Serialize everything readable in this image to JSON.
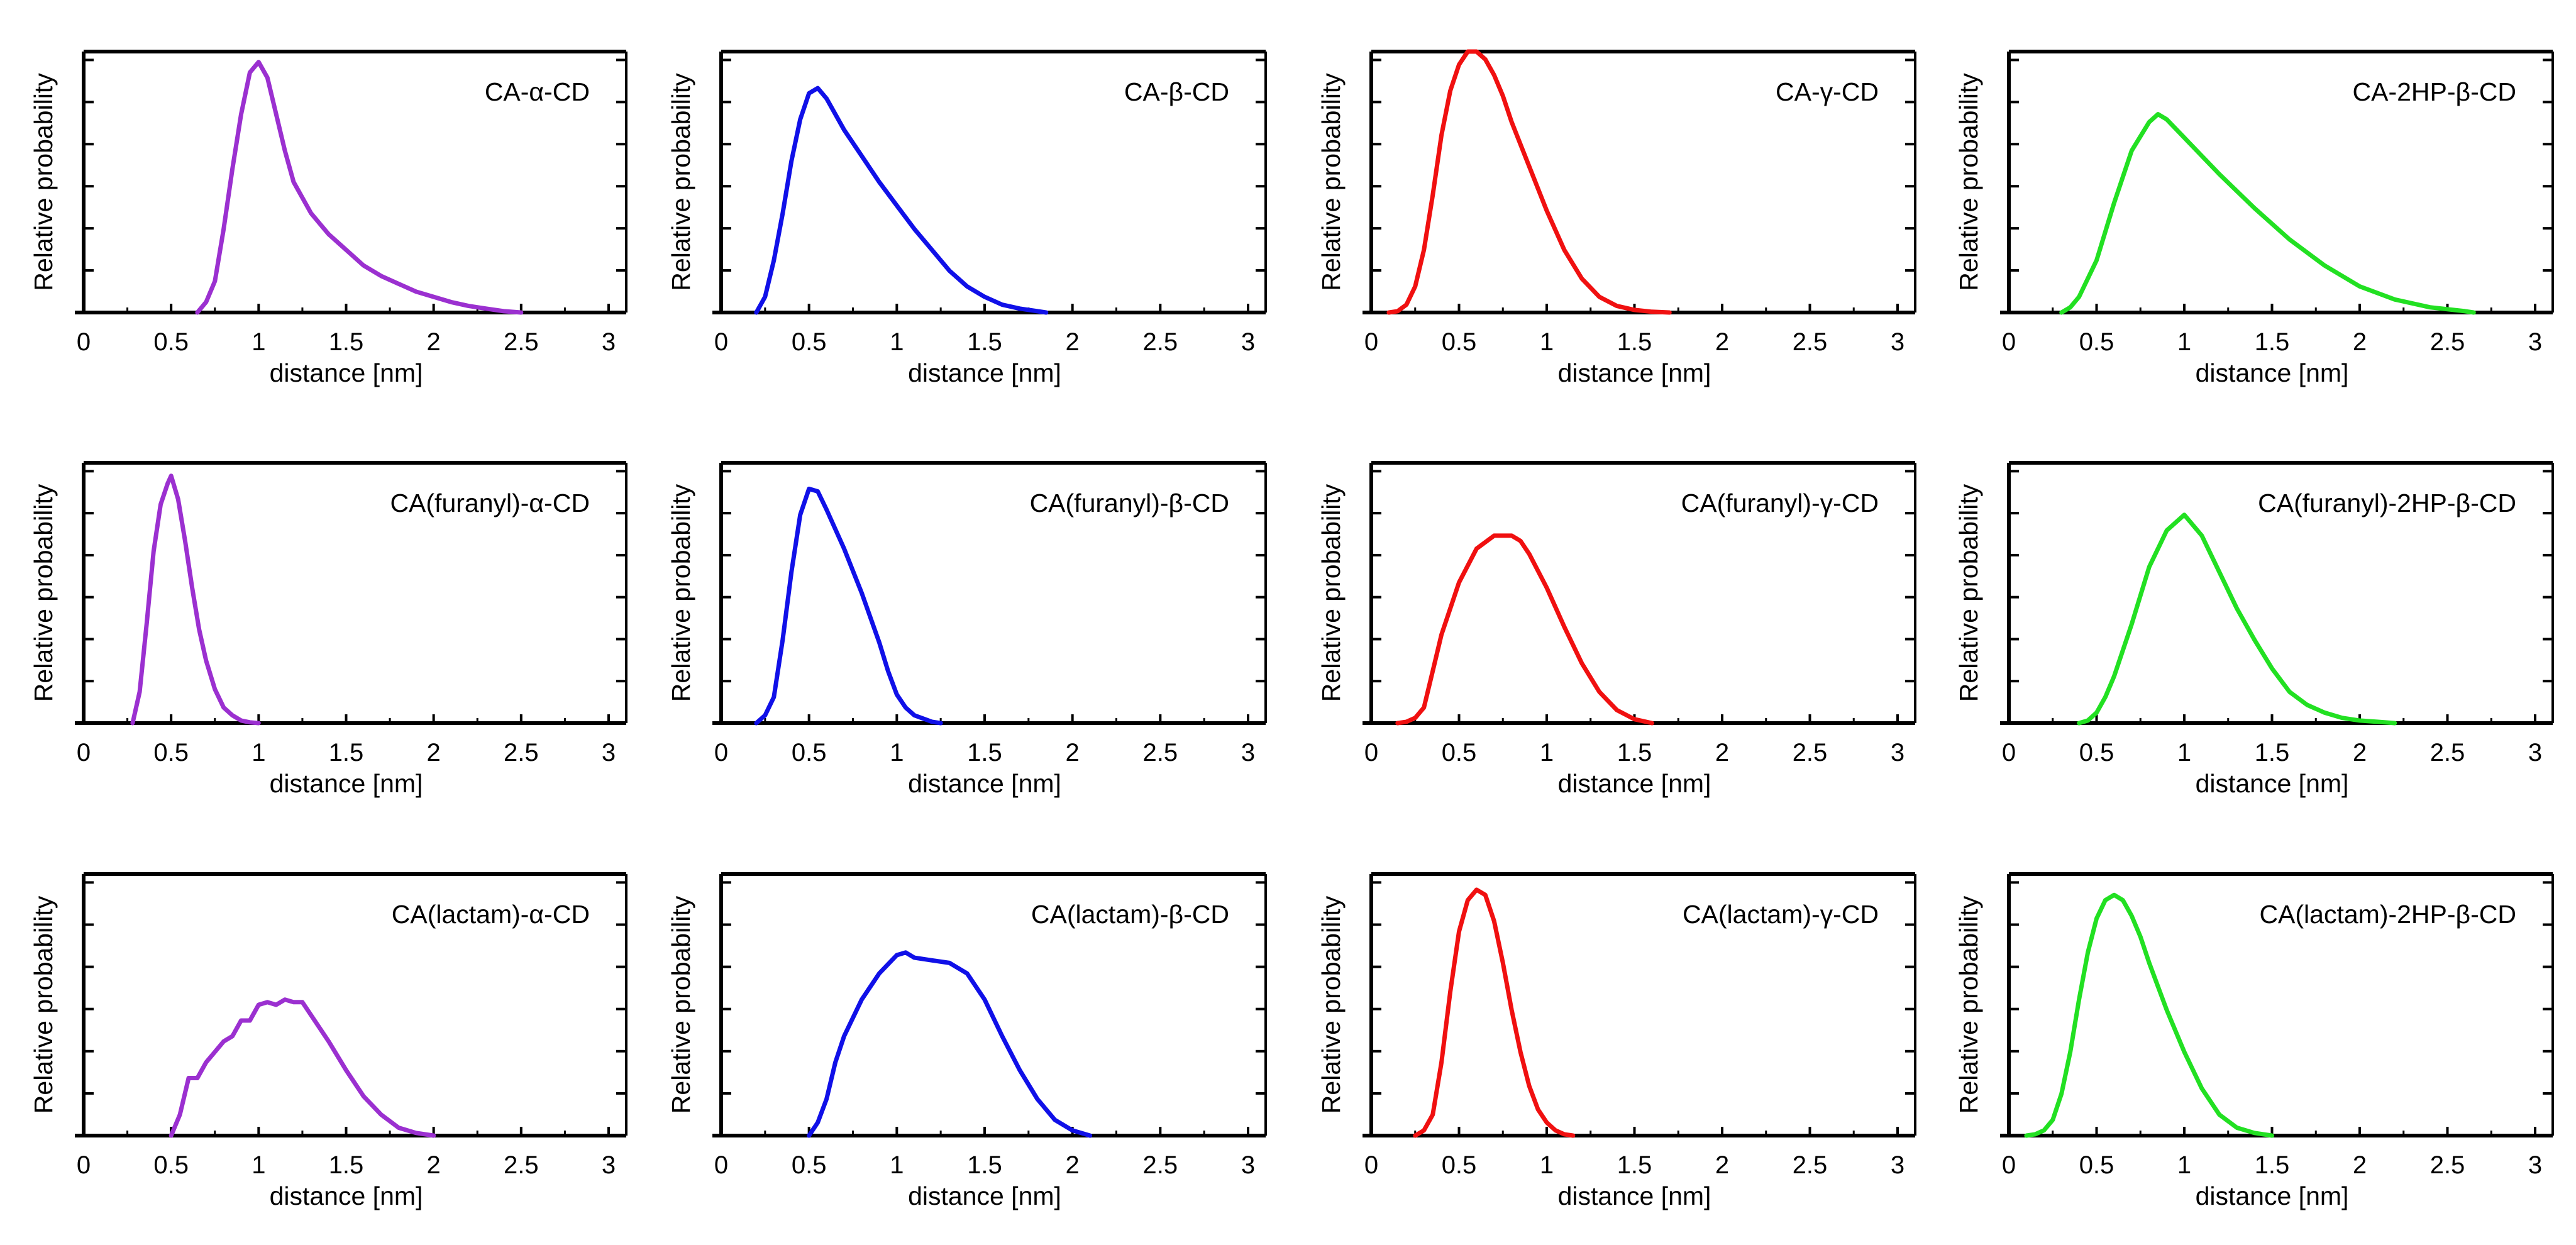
{
  "figure": {
    "ylabel": "Relative probability",
    "xlabel": "distance [nm]",
    "x_ticks": [
      0,
      0.5,
      1,
      1.5,
      2,
      2.5,
      3
    ],
    "x_tick_labels": [
      "0",
      "0.5",
      "1",
      "1.5",
      "2",
      "2.5",
      "3"
    ]
  },
  "chart_data": [
    {
      "type": "line",
      "title": "CA-α-CD",
      "xlabel": "distance [nm]",
      "ylabel": "Relative probability",
      "color": "#9B30D0",
      "xlim": [
        0,
        3
      ],
      "ylim": [
        0,
        1
      ],
      "series": [
        {
          "name": "CA-α-CD",
          "x": [
            0.65,
            0.7,
            0.75,
            0.8,
            0.85,
            0.9,
            0.95,
            1.0,
            1.05,
            1.1,
            1.15,
            1.2,
            1.3,
            1.4,
            1.5,
            1.6,
            1.7,
            1.8,
            1.9,
            2.0,
            2.1,
            2.2,
            2.3,
            2.4,
            2.5
          ],
          "y": [
            0,
            0.04,
            0.12,
            0.32,
            0.55,
            0.76,
            0.92,
            0.96,
            0.9,
            0.76,
            0.62,
            0.5,
            0.38,
            0.3,
            0.24,
            0.18,
            0.14,
            0.11,
            0.08,
            0.06,
            0.04,
            0.025,
            0.015,
            0.005,
            0
          ]
        }
      ]
    },
    {
      "type": "line",
      "title": "CA-β-CD",
      "xlabel": "distance [nm]",
      "ylabel": "Relative probability",
      "color": "#1010E8",
      "xlim": [
        0,
        3
      ],
      "ylim": [
        0,
        1
      ],
      "series": [
        {
          "name": "CA-β-CD",
          "x": [
            0.2,
            0.25,
            0.3,
            0.35,
            0.4,
            0.45,
            0.5,
            0.55,
            0.6,
            0.7,
            0.8,
            0.9,
            1.0,
            1.1,
            1.2,
            1.3,
            1.4,
            1.5,
            1.6,
            1.7,
            1.8,
            1.85
          ],
          "y": [
            0,
            0.06,
            0.2,
            0.38,
            0.58,
            0.74,
            0.84,
            0.86,
            0.82,
            0.7,
            0.6,
            0.5,
            0.41,
            0.32,
            0.24,
            0.16,
            0.1,
            0.06,
            0.03,
            0.015,
            0.005,
            0
          ]
        }
      ]
    },
    {
      "type": "line",
      "title": "CA-γ-CD",
      "xlabel": "distance [nm]",
      "ylabel": "Relative probability",
      "color": "#F01010",
      "xlim": [
        0,
        3
      ],
      "ylim": [
        0,
        1
      ],
      "series": [
        {
          "name": "CA-γ-CD",
          "x": [
            0.1,
            0.15,
            0.2,
            0.25,
            0.3,
            0.35,
            0.4,
            0.45,
            0.5,
            0.55,
            0.6,
            0.65,
            0.7,
            0.75,
            0.8,
            0.9,
            1.0,
            1.1,
            1.2,
            1.3,
            1.4,
            1.5,
            1.6,
            1.7
          ],
          "y": [
            0,
            0.005,
            0.03,
            0.1,
            0.24,
            0.45,
            0.68,
            0.85,
            0.95,
            1.0,
            1.0,
            0.97,
            0.91,
            0.83,
            0.73,
            0.56,
            0.39,
            0.24,
            0.13,
            0.06,
            0.025,
            0.01,
            0.003,
            0
          ]
        }
      ]
    },
    {
      "type": "line",
      "title": "CA-2HP-β-CD",
      "xlabel": "distance [nm]",
      "ylabel": "Relative probability",
      "color": "#22E022",
      "xlim": [
        0,
        3
      ],
      "ylim": [
        0,
        1
      ],
      "series": [
        {
          "name": "CA-2HP-β-CD",
          "x": [
            0.3,
            0.35,
            0.4,
            0.5,
            0.6,
            0.7,
            0.8,
            0.85,
            0.9,
            1.0,
            1.1,
            1.2,
            1.4,
            1.6,
            1.8,
            2.0,
            2.2,
            2.4,
            2.6,
            2.65
          ],
          "y": [
            0,
            0.02,
            0.06,
            0.2,
            0.42,
            0.62,
            0.73,
            0.76,
            0.74,
            0.67,
            0.6,
            0.53,
            0.4,
            0.28,
            0.18,
            0.1,
            0.05,
            0.02,
            0.005,
            0
          ]
        }
      ]
    },
    {
      "type": "line",
      "title": "CA(furanyl)-α-CD",
      "xlabel": "distance [nm]",
      "ylabel": "Relative probability",
      "color": "#9B30D0",
      "xlim": [
        0,
        3
      ],
      "ylim": [
        0,
        1
      ],
      "series": [
        {
          "name": "CA(furanyl)-α-CD",
          "x": [
            0.28,
            0.32,
            0.36,
            0.4,
            0.44,
            0.48,
            0.5,
            0.54,
            0.58,
            0.62,
            0.66,
            0.7,
            0.75,
            0.8,
            0.85,
            0.9,
            0.95,
            1.0
          ],
          "y": [
            0,
            0.12,
            0.38,
            0.66,
            0.84,
            0.92,
            0.95,
            0.86,
            0.7,
            0.52,
            0.36,
            0.24,
            0.13,
            0.06,
            0.03,
            0.01,
            0.003,
            0
          ]
        }
      ]
    },
    {
      "type": "line",
      "title": "CA(furanyl)-β-CD",
      "xlabel": "distance [nm]",
      "ylabel": "Relative probability",
      "color": "#1010E8",
      "xlim": [
        0,
        3
      ],
      "ylim": [
        0,
        1
      ],
      "series": [
        {
          "name": "CA(furanyl)-β-CD",
          "x": [
            0.2,
            0.25,
            0.3,
            0.35,
            0.4,
            0.45,
            0.5,
            0.55,
            0.6,
            0.7,
            0.8,
            0.9,
            0.95,
            1.0,
            1.05,
            1.1,
            1.2,
            1.25
          ],
          "y": [
            0,
            0.03,
            0.1,
            0.32,
            0.58,
            0.8,
            0.9,
            0.89,
            0.82,
            0.67,
            0.5,
            0.31,
            0.2,
            0.11,
            0.06,
            0.03,
            0.005,
            0
          ]
        }
      ]
    },
    {
      "type": "line",
      "title": "CA(furanyl)-γ-CD",
      "xlabel": "distance [nm]",
      "ylabel": "Relative probability",
      "color": "#F01010",
      "xlim": [
        0,
        3
      ],
      "ylim": [
        0,
        1
      ],
      "series": [
        {
          "name": "CA(furanyl)-γ-CD",
          "x": [
            0.15,
            0.2,
            0.25,
            0.3,
            0.35,
            0.4,
            0.5,
            0.6,
            0.7,
            0.8,
            0.85,
            0.9,
            1.0,
            1.1,
            1.2,
            1.3,
            1.4,
            1.5,
            1.6
          ],
          "y": [
            0,
            0.005,
            0.02,
            0.06,
            0.2,
            0.34,
            0.54,
            0.67,
            0.72,
            0.72,
            0.7,
            0.65,
            0.52,
            0.37,
            0.23,
            0.12,
            0.05,
            0.015,
            0
          ]
        }
      ]
    },
    {
      "type": "line",
      "title": "CA(furanyl)-2HP-β-CD",
      "xlabel": "distance [nm]",
      "ylabel": "Relative probability",
      "color": "#22E022",
      "xlim": [
        0,
        3
      ],
      "ylim": [
        0,
        1
      ],
      "series": [
        {
          "name": "CA(furanyl)-2HP-β-CD",
          "x": [
            0.4,
            0.45,
            0.5,
            0.55,
            0.6,
            0.7,
            0.8,
            0.9,
            1.0,
            1.1,
            1.2,
            1.3,
            1.4,
            1.5,
            1.6,
            1.7,
            1.8,
            1.9,
            2.0,
            2.1,
            2.2
          ],
          "y": [
            0,
            0.01,
            0.04,
            0.1,
            0.18,
            0.38,
            0.6,
            0.74,
            0.8,
            0.72,
            0.58,
            0.44,
            0.32,
            0.21,
            0.12,
            0.07,
            0.04,
            0.02,
            0.01,
            0.005,
            0
          ]
        }
      ]
    },
    {
      "type": "line",
      "title": "CA(lactam)-α-CD",
      "xlabel": "distance [nm]",
      "ylabel": "Relative probability",
      "color": "#9B30D0",
      "xlim": [
        0,
        3
      ],
      "ylim": [
        0,
        1
      ],
      "series": [
        {
          "name": "CA(lactam)-α-CD",
          "x": [
            0.5,
            0.55,
            0.6,
            0.65,
            0.7,
            0.75,
            0.8,
            0.85,
            0.9,
            0.95,
            1.0,
            1.05,
            1.1,
            1.15,
            1.2,
            1.25,
            1.3,
            1.4,
            1.5,
            1.6,
            1.7,
            1.8,
            1.9,
            2.0
          ],
          "y": [
            0,
            0.08,
            0.22,
            0.22,
            0.28,
            0.32,
            0.36,
            0.38,
            0.44,
            0.44,
            0.5,
            0.51,
            0.5,
            0.52,
            0.51,
            0.51,
            0.46,
            0.36,
            0.25,
            0.15,
            0.08,
            0.03,
            0.01,
            0
          ]
        }
      ]
    },
    {
      "type": "line",
      "title": "CA(lactam)-β-CD",
      "xlabel": "distance [nm]",
      "ylabel": "Relative probability",
      "color": "#1010E8",
      "xlim": [
        0,
        3
      ],
      "ylim": [
        0,
        1
      ],
      "series": [
        {
          "name": "CA(lactam)-β-CD",
          "x": [
            0.5,
            0.55,
            0.6,
            0.65,
            0.7,
            0.8,
            0.9,
            1.0,
            1.05,
            1.1,
            1.2,
            1.3,
            1.4,
            1.5,
            1.6,
            1.7,
            1.8,
            1.9,
            2.0,
            2.1
          ],
          "y": [
            0,
            0.05,
            0.14,
            0.28,
            0.38,
            0.52,
            0.62,
            0.69,
            0.7,
            0.68,
            0.67,
            0.66,
            0.62,
            0.52,
            0.38,
            0.25,
            0.14,
            0.06,
            0.02,
            0
          ]
        }
      ]
    },
    {
      "type": "line",
      "title": "CA(lactam)-γ-CD",
      "xlabel": "distance [nm]",
      "ylabel": "Relative probability",
      "color": "#F01010",
      "xlim": [
        0,
        3
      ],
      "ylim": [
        0,
        1
      ],
      "series": [
        {
          "name": "CA(lactam)-γ-CD",
          "x": [
            0.25,
            0.3,
            0.35,
            0.4,
            0.45,
            0.5,
            0.55,
            0.6,
            0.65,
            0.7,
            0.75,
            0.8,
            0.85,
            0.9,
            0.95,
            1.0,
            1.05,
            1.1,
            1.15
          ],
          "y": [
            0,
            0.02,
            0.08,
            0.28,
            0.55,
            0.78,
            0.9,
            0.94,
            0.92,
            0.82,
            0.66,
            0.48,
            0.32,
            0.19,
            0.1,
            0.05,
            0.02,
            0.005,
            0
          ]
        }
      ]
    },
    {
      "type": "line",
      "title": "CA(lactam)-2HP-β-CD",
      "xlabel": "distance [nm]",
      "ylabel": "Relative probability",
      "color": "#22E022",
      "xlim": [
        0,
        3
      ],
      "ylim": [
        0,
        1
      ],
      "series": [
        {
          "name": "CA(lactam)-2HP-β-CD",
          "x": [
            0.1,
            0.15,
            0.2,
            0.25,
            0.3,
            0.35,
            0.4,
            0.45,
            0.5,
            0.55,
            0.6,
            0.65,
            0.7,
            0.75,
            0.8,
            0.9,
            1.0,
            1.1,
            1.2,
            1.3,
            1.4,
            1.5
          ],
          "y": [
            0,
            0.005,
            0.02,
            0.06,
            0.16,
            0.32,
            0.52,
            0.7,
            0.83,
            0.9,
            0.92,
            0.9,
            0.84,
            0.76,
            0.66,
            0.48,
            0.32,
            0.18,
            0.08,
            0.03,
            0.01,
            0
          ]
        }
      ]
    }
  ]
}
